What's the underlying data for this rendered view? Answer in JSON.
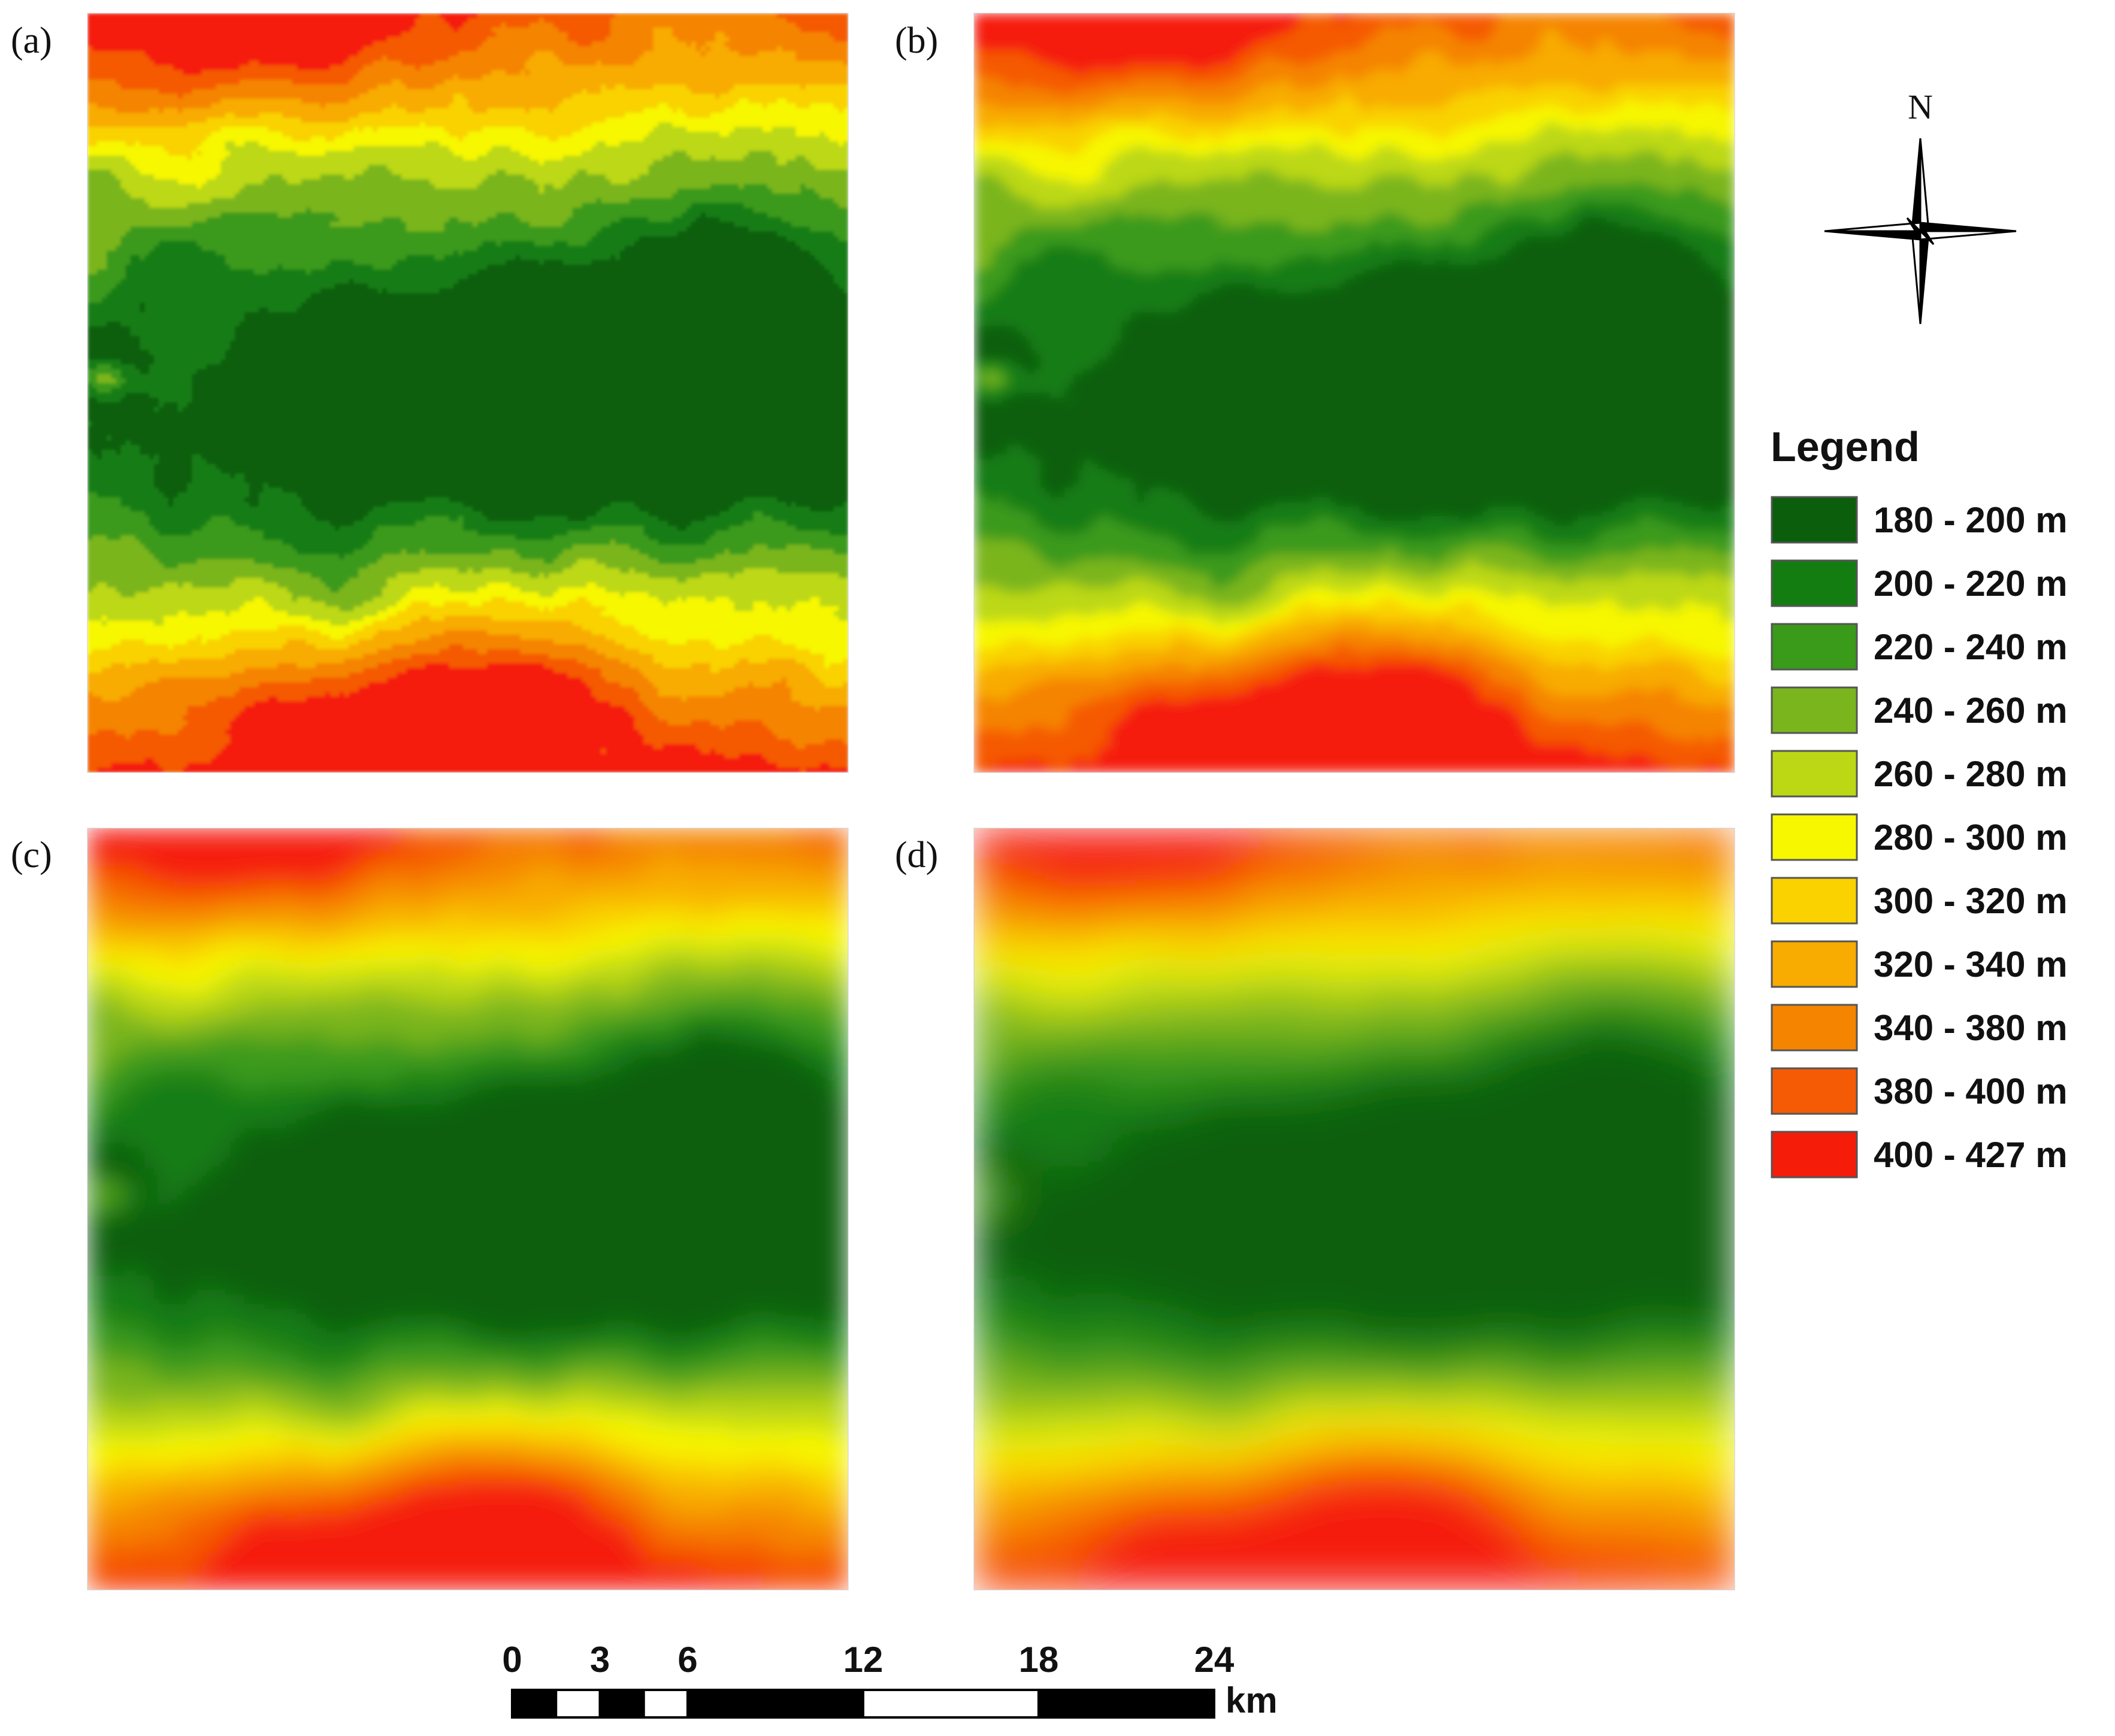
{
  "panels": [
    {
      "label": "(a)",
      "smoothing": 0
    },
    {
      "label": "(b)",
      "smoothing": 1
    },
    {
      "label": "(c)",
      "smoothing": 2
    },
    {
      "label": "(d)",
      "smoothing": 3
    }
  ],
  "north": {
    "label": "N"
  },
  "legend": {
    "title": "Legend",
    "classes": [
      {
        "label": "180 - 200 m",
        "color": "#0b5e0b"
      },
      {
        "label": "200 - 220 m",
        "color": "#147d12"
      },
      {
        "label": "220 - 240 m",
        "color": "#3a9a1a"
      },
      {
        "label": "240 - 260 m",
        "color": "#7ab51e"
      },
      {
        "label": "260 - 280 m",
        "color": "#bcd814"
      },
      {
        "label": "280 - 300 m",
        "color": "#f7f700"
      },
      {
        "label": "300 - 320 m",
        "color": "#f9d200"
      },
      {
        "label": "320 - 340 m",
        "color": "#f8ab00"
      },
      {
        "label": "340 - 380 m",
        "color": "#f58400"
      },
      {
        "label": "380 - 400 m",
        "color": "#f55a05"
      },
      {
        "label": "400 - 427 m",
        "color": "#f51c0a"
      }
    ]
  },
  "scale_bar": {
    "ticks": [
      "0",
      "3",
      "6",
      "12",
      "18",
      "24"
    ],
    "tick_values": [
      0,
      3,
      6,
      12,
      18,
      24
    ],
    "segments": [
      [
        0,
        1.5
      ],
      [
        1.5,
        3
      ],
      [
        3,
        4.5
      ],
      [
        4.5,
        6
      ],
      [
        6,
        12
      ],
      [
        12,
        18
      ],
      [
        18,
        24
      ]
    ],
    "unit": "km"
  }
}
